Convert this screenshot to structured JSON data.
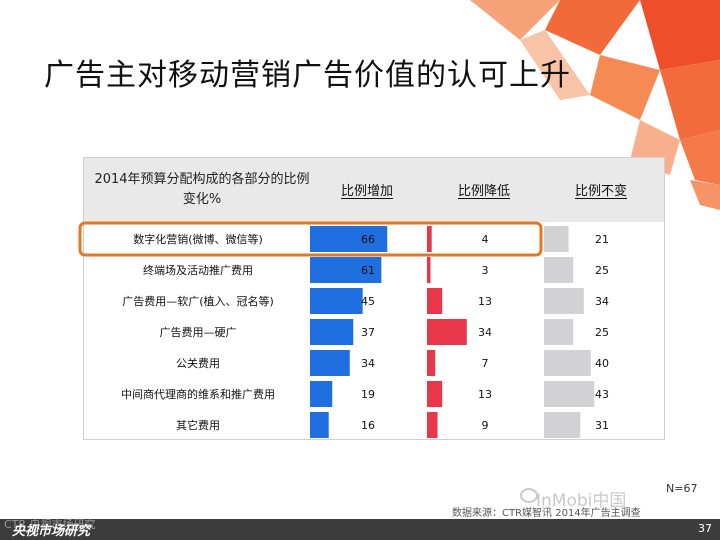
{
  "slide": {
    "title": "广告主对移动营销广告价值的认可上升",
    "n_label": "N=67",
    "source": "数据来源：CTR媒智讯 2014年广告主调查",
    "wechat_text": "InMobi中国",
    "footer_text": "央视市场研究",
    "footer_logo": "CTR 央视市场研究",
    "page_number": "37"
  },
  "colors": {
    "increase": "#1f6fe0",
    "decrease": "#e8374a",
    "unchanged": "#d2d2d4",
    "highlight": "#e8761e",
    "header_bg": "#e9e9e9",
    "deco_orange": "#f26a3a",
    "footer": "#3c3c3c"
  },
  "chart_data": {
    "type": "bar",
    "title": "2014年预算分配构成的各部分的比例变化%",
    "categories": [
      "数字化营销(微博、微信等)",
      "终端场及活动推广费用",
      "广告费用—软广(植入、冠名等)",
      "广告费用—硬广",
      "公关费用",
      "中间商代理商的维系和推广费用",
      "其它费用"
    ],
    "series": [
      {
        "name": "比例增加",
        "values": [
          66,
          61,
          45,
          37,
          34,
          19,
          16
        ],
        "color": "#1f6fe0"
      },
      {
        "name": "比例降低",
        "values": [
          4,
          3,
          13,
          34,
          7,
          13,
          9
        ],
        "color": "#e8374a"
      },
      {
        "name": "比例不变",
        "values": [
          21,
          25,
          34,
          25,
          40,
          43,
          31
        ],
        "color": "#d2d2d4"
      }
    ],
    "highlighted_category": "数字化营销(微博、微信等)",
    "xlim": [
      0,
      100
    ],
    "grid": false,
    "legend": "none"
  }
}
